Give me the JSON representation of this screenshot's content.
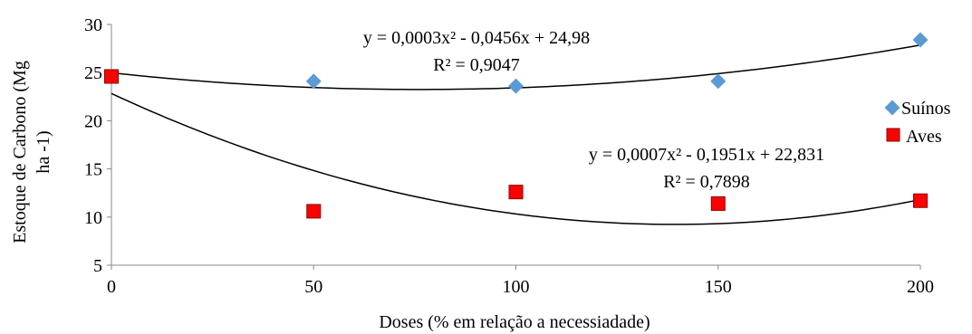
{
  "chart_data": {
    "type": "scatter",
    "x": [
      0,
      50,
      100,
      150,
      200
    ],
    "xlim": [
      0,
      200
    ],
    "ylim": [
      5,
      30
    ],
    "x_ticks": [
      "0",
      "50",
      "100",
      "150",
      "200"
    ],
    "y_ticks": [
      "5",
      "10",
      "15",
      "20",
      "25",
      "30"
    ],
    "xlabel": "Doses (% em relação a necessiadade)",
    "ylabel_line1": "Estoque de Carbono (Mg",
    "ylabel_line2": "ha -1)",
    "grid": false,
    "legend_position": "right",
    "series": [
      {
        "name": "Suínos",
        "marker": "diamond",
        "color": "#5B9BD5",
        "values": [
          24.6,
          24.1,
          23.6,
          24.1,
          28.4
        ],
        "trendline": {
          "a": 0.0003,
          "b": -0.0456,
          "c": 24.98,
          "equation": "y = 0,0003x² - 0,0456x + 24,98",
          "r2": "R² = 0,9047"
        }
      },
      {
        "name": "Aves",
        "marker": "square",
        "color": "#FF0000",
        "values": [
          24.6,
          10.6,
          12.6,
          11.4,
          11.7
        ],
        "trendline": {
          "a": 0.0007,
          "b": -0.1951,
          "c": 22.831,
          "equation": "y = 0,0007x² - 0,1951x + 22,831",
          "r2": "R² = 0,7898"
        }
      }
    ]
  }
}
